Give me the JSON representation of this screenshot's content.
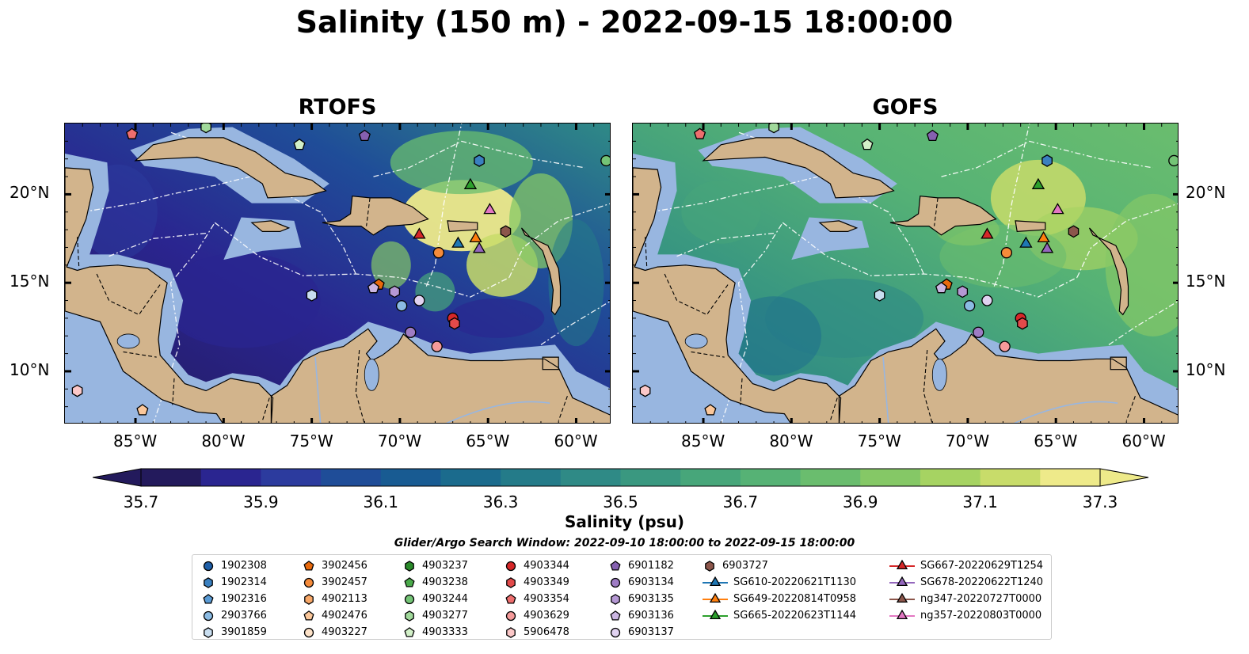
{
  "title": "Salinity (150 m) - 2022-09-15 18:00:00",
  "panels": [
    {
      "title": "RTOFS",
      "colormap": "low"
    },
    {
      "title": "GOFS",
      "colormap": "high"
    }
  ],
  "axes": {
    "lon_labels": [
      "85°W",
      "80°W",
      "75°W",
      "70°W",
      "65°W",
      "60°W"
    ],
    "lat_labels": [
      "20°N",
      "15°N",
      "10°N"
    ]
  },
  "colorbar": {
    "title": "Salinity (psu)",
    "range": [
      35.7,
      37.3
    ],
    "tick_labels": [
      "35.7",
      "35.9",
      "36.1",
      "36.3",
      "36.5",
      "36.7",
      "36.9",
      "37.1",
      "37.3"
    ],
    "colors": [
      "#231a5c",
      "#2a2590",
      "#2c3b9e",
      "#1f4d98",
      "#185b92",
      "#1b6b8d",
      "#247b89",
      "#2f8a86",
      "#3a9880",
      "#47a67a",
      "#56b275",
      "#6abd6e",
      "#85c866",
      "#a6d362",
      "#c8dc6a",
      "#eeea8a"
    ]
  },
  "search_window": "Glider/Argo Search Window: 2022-09-10 18:00:00 to 2022-09-15 18:00:00",
  "legend": {
    "items": [
      {
        "label": "1902308",
        "marker": "circle",
        "color": "#1f5fa8"
      },
      {
        "label": "1902314",
        "marker": "hexagon",
        "color": "#3a80c0"
      },
      {
        "label": "1902316",
        "marker": "pentagon",
        "color": "#5a9bd5"
      },
      {
        "label": "2903766",
        "marker": "circle",
        "color": "#8bbbe3"
      },
      {
        "label": "3901859",
        "marker": "hexagon",
        "color": "#c9def0"
      },
      {
        "label": "3902456",
        "marker": "pentagon",
        "color": "#e8690c"
      },
      {
        "label": "3902457",
        "marker": "circle",
        "color": "#f58b3a"
      },
      {
        "label": "4902113",
        "marker": "hexagon",
        "color": "#f8a868"
      },
      {
        "label": "4902476",
        "marker": "pentagon",
        "color": "#fbc79a"
      },
      {
        "label": "4903227",
        "marker": "circle",
        "color": "#fde2c8"
      },
      {
        "label": "4903237",
        "marker": "hexagon",
        "color": "#2a8a2a"
      },
      {
        "label": "4903238",
        "marker": "pentagon",
        "color": "#4aaa4a"
      },
      {
        "label": "4903244",
        "marker": "circle",
        "color": "#74c476"
      },
      {
        "label": "4903277",
        "marker": "hexagon",
        "color": "#a1d99b"
      },
      {
        "label": "4903333",
        "marker": "pentagon",
        "color": "#d2f0c8"
      },
      {
        "label": "4903344",
        "marker": "circle",
        "color": "#d62728"
      },
      {
        "label": "4903349",
        "marker": "hexagon",
        "color": "#e24a4a"
      },
      {
        "label": "4903354",
        "marker": "pentagon",
        "color": "#ee6e6e"
      },
      {
        "label": "4903629",
        "marker": "circle",
        "color": "#f59a9a"
      },
      {
        "label": "5906478",
        "marker": "hexagon",
        "color": "#fcc8c8"
      },
      {
        "label": "6901182",
        "marker": "pentagon",
        "color": "#8560b0"
      },
      {
        "label": "6903134",
        "marker": "circle",
        "color": "#9e7cc4"
      },
      {
        "label": "6903135",
        "marker": "hexagon",
        "color": "#b598d4"
      },
      {
        "label": "6903136",
        "marker": "pentagon",
        "color": "#cbb6e2"
      },
      {
        "label": "6903137",
        "marker": "circle",
        "color": "#e0d2f0"
      },
      {
        "label": "6903727",
        "marker": "hexagon",
        "color": "#8c564b"
      },
      {
        "label": "SG610-20220621T1130",
        "marker": "triangle-line",
        "color": "#1f77b4"
      },
      {
        "label": "SG649-20220814T0958",
        "marker": "triangle-line",
        "color": "#ff7f0e"
      },
      {
        "label": "SG665-20220623T1144",
        "marker": "triangle-line",
        "color": "#2ca02c"
      },
      {
        "label": "SG667-20220629T1254",
        "marker": "triangle-line",
        "color": "#d62728"
      },
      {
        "label": "SG678-20220622T1240",
        "marker": "triangle-line",
        "color": "#9467bd"
      },
      {
        "label": "ng347-20220727T0000",
        "marker": "triangle-line",
        "color": "#8c564b"
      },
      {
        "label": "ng357-20220803T0000",
        "marker": "triangle-line",
        "color": "#e377c2"
      }
    ]
  },
  "observations": [
    {
      "lon": -85.2,
      "lat": 23.4,
      "marker": "pentagon",
      "color": "#ee6e6e"
    },
    {
      "lon": -81.0,
      "lat": 23.8,
      "marker": "hexagon",
      "color": "#a1d99b"
    },
    {
      "lon": -75.7,
      "lat": 22.8,
      "marker": "pentagon",
      "color": "#d2f0c8"
    },
    {
      "lon": -72.0,
      "lat": 23.3,
      "marker": "pentagon",
      "color": "#8560b0"
    },
    {
      "lon": -65.5,
      "lat": 21.9,
      "marker": "hexagon",
      "color": "#3a80c0"
    },
    {
      "lon": -58.3,
      "lat": 21.9,
      "marker": "circle",
      "color": "#74c476"
    },
    {
      "lon": -66.0,
      "lat": 20.5,
      "marker": "triangle",
      "color": "#2ca02c"
    },
    {
      "lon": -64.9,
      "lat": 19.1,
      "marker": "triangle",
      "color": "#e377c2"
    },
    {
      "lon": -68.9,
      "lat": 17.7,
      "marker": "triangle",
      "color": "#d62728"
    },
    {
      "lon": -67.8,
      "lat": 16.7,
      "marker": "circle",
      "color": "#f58b3a"
    },
    {
      "lon": -66.7,
      "lat": 17.2,
      "marker": "triangle",
      "color": "#1f77b4"
    },
    {
      "lon": -65.7,
      "lat": 17.5,
      "marker": "triangle",
      "color": "#ff7f0e"
    },
    {
      "lon": -65.5,
      "lat": 16.9,
      "marker": "triangle",
      "color": "#9467bd"
    },
    {
      "lon": -64.0,
      "lat": 17.9,
      "marker": "hexagon",
      "color": "#8c564b"
    },
    {
      "lon": -71.2,
      "lat": 14.9,
      "marker": "pentagon",
      "color": "#e8690c"
    },
    {
      "lon": -71.5,
      "lat": 14.7,
      "marker": "pentagon",
      "color": "#cbb6e2"
    },
    {
      "lon": -70.3,
      "lat": 14.5,
      "marker": "hexagon",
      "color": "#b598d4"
    },
    {
      "lon": -75.0,
      "lat": 14.3,
      "marker": "hexagon",
      "color": "#c9def0"
    },
    {
      "lon": -69.9,
      "lat": 13.7,
      "marker": "circle",
      "color": "#8bbbe3"
    },
    {
      "lon": -68.9,
      "lat": 14.0,
      "marker": "circle",
      "color": "#e0d2f0"
    },
    {
      "lon": -67.0,
      "lat": 13.0,
      "marker": "circle",
      "color": "#d62728"
    },
    {
      "lon": -66.9,
      "lat": 12.7,
      "marker": "hexagon",
      "color": "#e24a4a"
    },
    {
      "lon": -69.4,
      "lat": 12.2,
      "marker": "circle",
      "color": "#9e7cc4"
    },
    {
      "lon": -67.9,
      "lat": 11.4,
      "marker": "circle",
      "color": "#f59a9a"
    },
    {
      "lon": -88.3,
      "lat": 8.9,
      "marker": "hexagon",
      "color": "#fcc8c8"
    },
    {
      "lon": -84.6,
      "lat": 7.8,
      "marker": "pentagon",
      "color": "#fbc79a"
    }
  ]
}
